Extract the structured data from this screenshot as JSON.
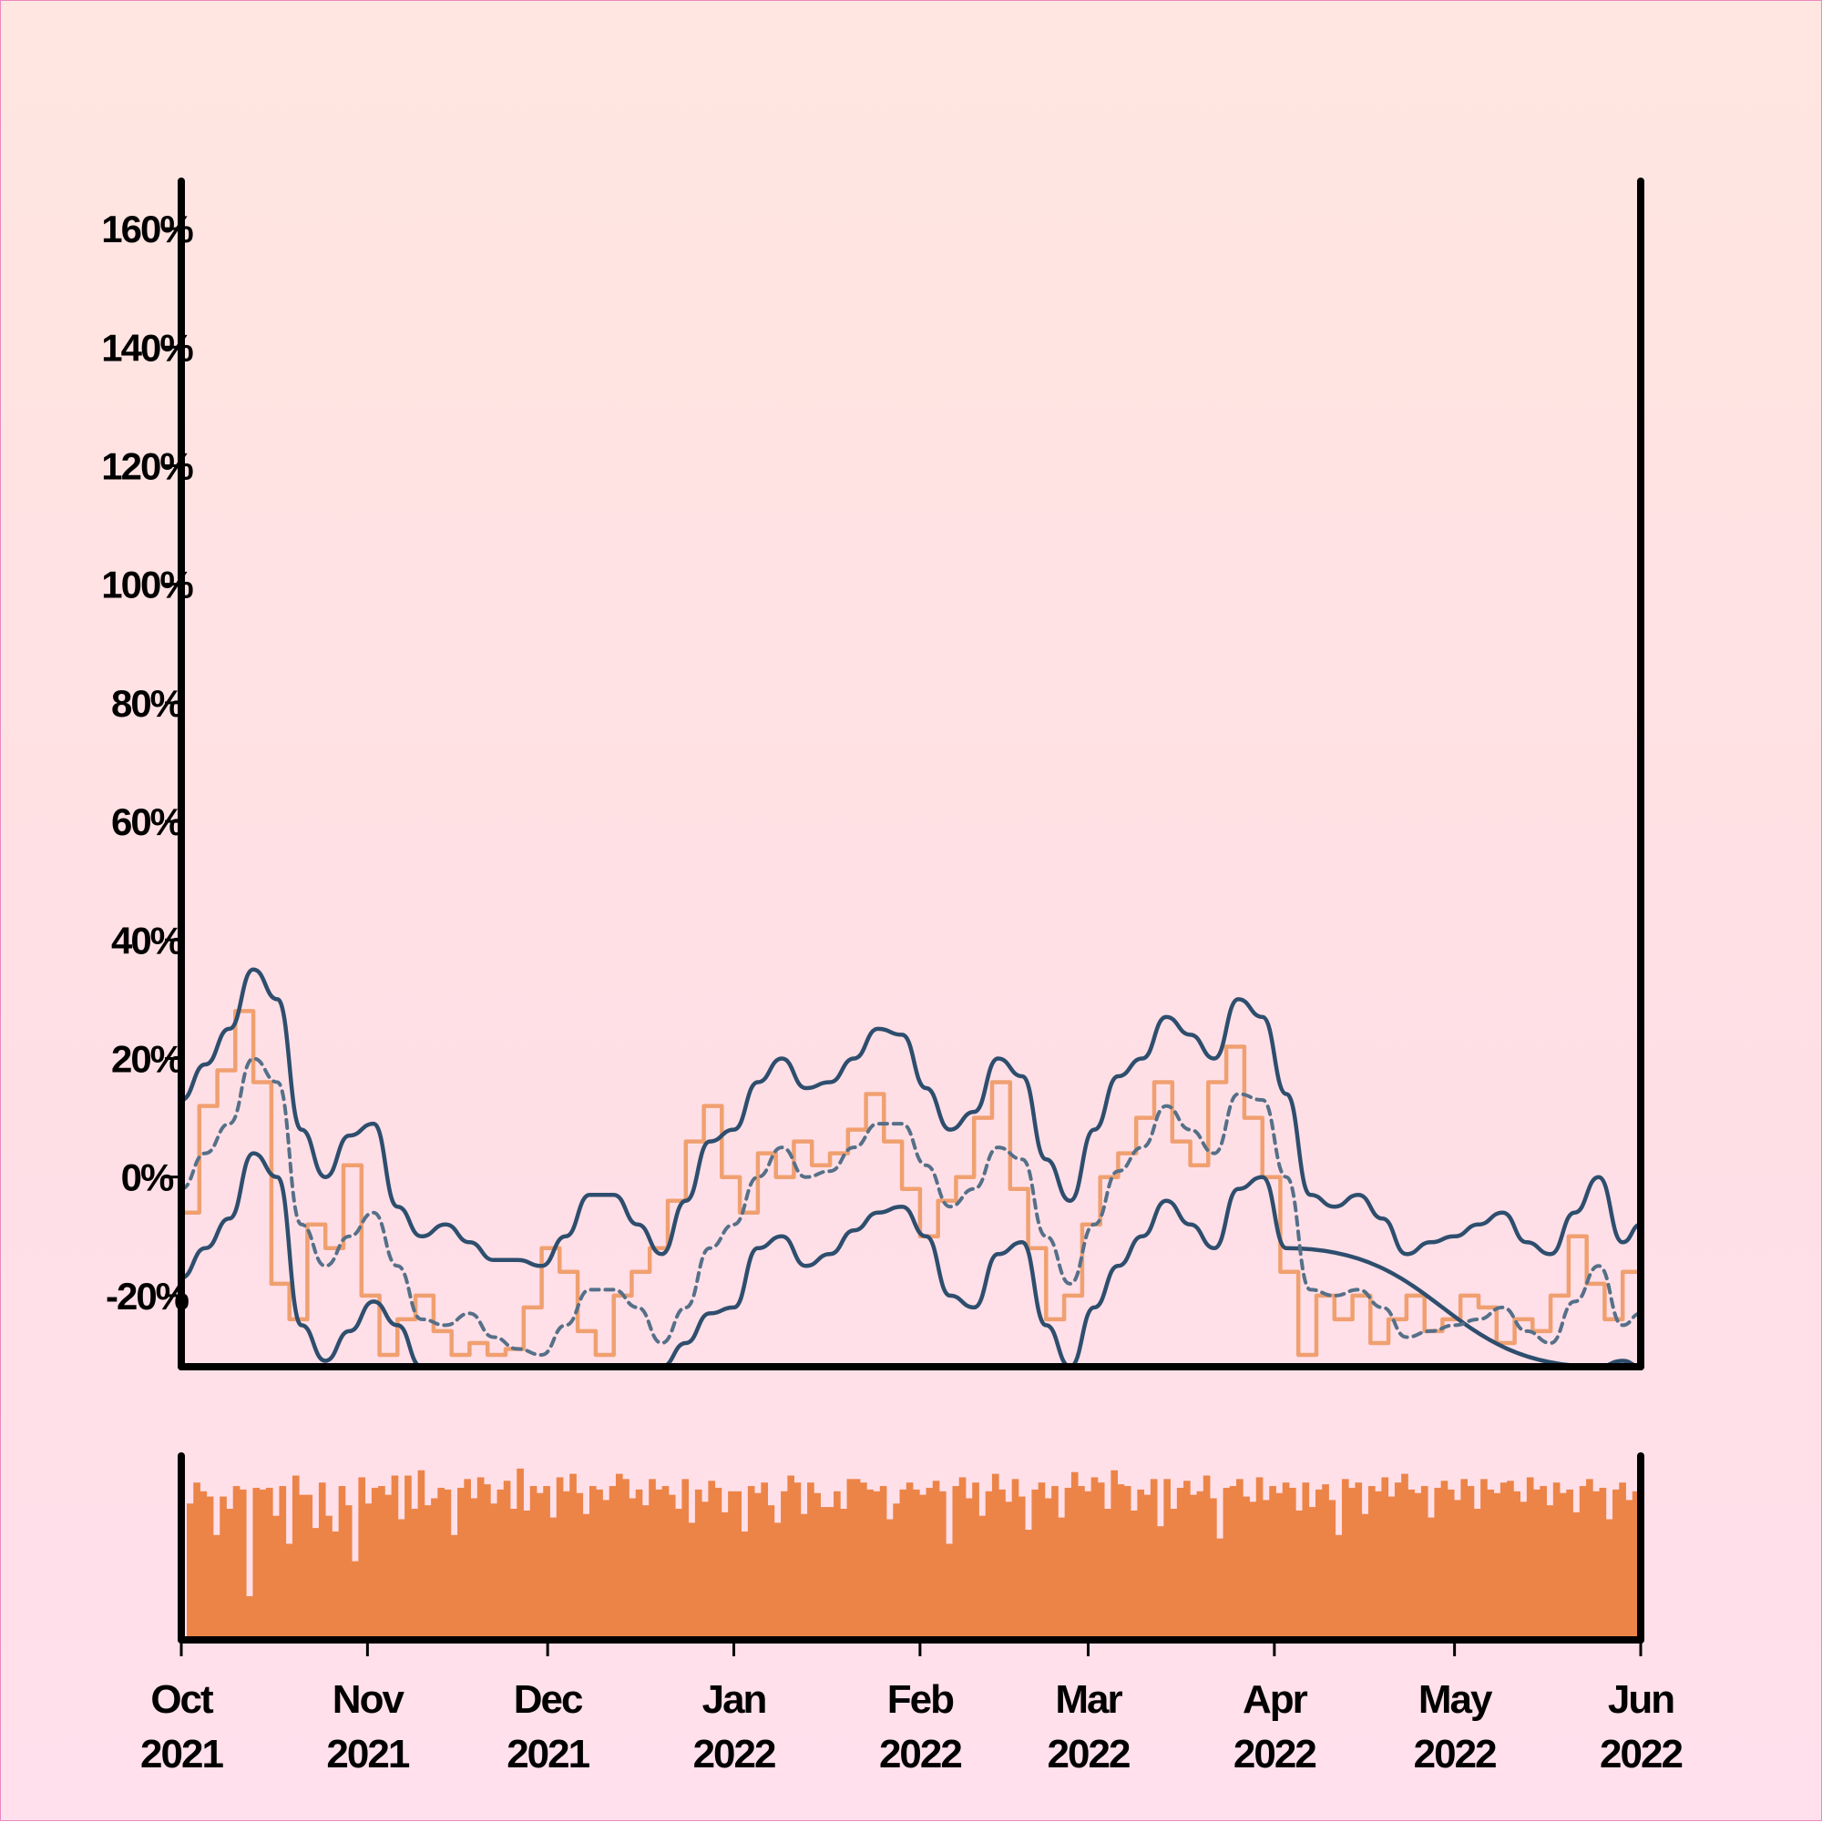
{
  "chart_data": [
    {
      "type": "line",
      "panel": "main",
      "title": "",
      "xlabel": "",
      "ylabel": "",
      "x_range": [
        "2021-10-01",
        "2022-06-01"
      ],
      "ylim": [
        -0.32,
        1.68
      ],
      "y_tick_values": [
        -0.2,
        0,
        0.2,
        0.4,
        0.6,
        0.8,
        1.0,
        1.2,
        1.4,
        1.6
      ],
      "y_tick_labels": [
        "-20%",
        "0%",
        "20%",
        "40%",
        "60%",
        "80%",
        "100%",
        "120%",
        "140%",
        "160%"
      ],
      "x_tick_values": [
        "2021-10-01",
        "2021-11-01",
        "2021-12-01",
        "2022-01-01",
        "2022-02-01",
        "2022-03-01",
        "2022-04-01",
        "2022-05-01",
        "2022-06-01"
      ],
      "x_tick_labels": [
        {
          "month": "Oct",
          "year": "2021"
        },
        {
          "month": "Nov",
          "year": "2021"
        },
        {
          "month": "Dec",
          "year": "2021"
        },
        {
          "month": "Jan",
          "year": "2022"
        },
        {
          "month": "Feb",
          "year": "2022"
        },
        {
          "month": "Mar",
          "year": "2022"
        },
        {
          "month": "Apr",
          "year": "2022"
        },
        {
          "month": "May",
          "year": "2022"
        },
        {
          "month": "Jun",
          "year": "2022"
        }
      ],
      "grid": false,
      "legend": "none",
      "colors": {
        "daily": "#f0a070",
        "band": "#2e4e6e",
        "mean": "#557088"
      },
      "series": [
        {
          "style": "orange thin line",
          "x": [
            "2021-10-01",
            "2021-10-04",
            "2021-10-07",
            "2021-10-10",
            "2021-10-13",
            "2021-10-16",
            "2021-10-19",
            "2021-10-22",
            "2021-10-25",
            "2021-10-28",
            "2021-10-31",
            "2021-11-03",
            "2021-11-06",
            "2021-11-09",
            "2021-11-12",
            "2021-11-15",
            "2021-11-18",
            "2021-11-21",
            "2021-11-24",
            "2021-11-27",
            "2021-11-30",
            "2021-12-03",
            "2021-12-06",
            "2021-12-09",
            "2021-12-12",
            "2021-12-15",
            "2021-12-18",
            "2021-12-21",
            "2021-12-24",
            "2021-12-27",
            "2021-12-30",
            "2022-01-02",
            "2022-01-05",
            "2022-01-08",
            "2022-01-11",
            "2022-01-14",
            "2022-01-17",
            "2022-01-20",
            "2022-01-23",
            "2022-01-26",
            "2022-01-29",
            "2022-02-01",
            "2022-02-04",
            "2022-02-07",
            "2022-02-10",
            "2022-02-13",
            "2022-02-16",
            "2022-02-19",
            "2022-02-22",
            "2022-02-25",
            "2022-02-28",
            "2022-03-03",
            "2022-03-06",
            "2022-03-09",
            "2022-03-12",
            "2022-03-15",
            "2022-03-18",
            "2022-03-21",
            "2022-03-24",
            "2022-03-27",
            "2022-03-30",
            "2022-04-02",
            "2022-04-05",
            "2022-04-08",
            "2022-04-11",
            "2022-04-14",
            "2022-04-17",
            "2022-04-20",
            "2022-04-23",
            "2022-04-26",
            "2022-04-29",
            "2022-05-02",
            "2022-05-05",
            "2022-05-08",
            "2022-05-11",
            "2022-05-14",
            "2022-05-17",
            "2022-05-20",
            "2022-05-23",
            "2022-05-26",
            "2022-05-29",
            "2022-06-01"
          ],
          "values": [
            -0.06,
            0.12,
            0.18,
            0.28,
            0.16,
            -0.18,
            -0.24,
            -0.08,
            -0.12,
            0.02,
            -0.2,
            -0.3,
            -0.24,
            -0.2,
            -0.26,
            -0.3,
            -0.28,
            -0.3,
            -0.29,
            -0.22,
            -0.12,
            -0.16,
            -0.26,
            -0.3,
            -0.2,
            -0.16,
            -0.12,
            -0.04,
            0.06,
            0.12,
            0.0,
            -0.06,
            0.04,
            0.0,
            0.06,
            0.02,
            0.04,
            0.08,
            0.14,
            0.06,
            -0.02,
            -0.1,
            -0.04,
            0.0,
            0.1,
            0.16,
            -0.02,
            -0.12,
            -0.24,
            -0.2,
            -0.08,
            0.0,
            0.04,
            0.1,
            0.16,
            0.06,
            0.02,
            0.16,
            0.22,
            0.1,
            0.0,
            -0.16,
            -0.3,
            -0.2,
            -0.24,
            -0.2,
            -0.28,
            -0.24,
            -0.2,
            -0.26,
            -0.24,
            -0.2,
            -0.22,
            -0.28,
            -0.24,
            -0.26,
            -0.2,
            -0.1,
            -0.18,
            -0.24,
            -0.16,
            -0.3
          ]
        },
        {
          "style": "dark solid line (upper band)",
          "x": [
            "2021-10-01",
            "2021-10-05",
            "2021-10-09",
            "2021-10-13",
            "2021-10-17",
            "2021-10-21",
            "2021-10-25",
            "2021-10-29",
            "2021-11-02",
            "2021-11-06",
            "2021-11-10",
            "2021-11-14",
            "2021-11-18",
            "2021-11-22",
            "2021-11-26",
            "2021-11-30",
            "2021-12-04",
            "2021-12-08",
            "2021-12-12",
            "2021-12-16",
            "2021-12-20",
            "2021-12-24",
            "2021-12-28",
            "2022-01-01",
            "2022-01-05",
            "2022-01-09",
            "2022-01-13",
            "2022-01-17",
            "2022-01-21",
            "2022-01-25",
            "2022-01-29",
            "2022-02-02",
            "2022-02-06",
            "2022-02-10",
            "2022-02-14",
            "2022-02-18",
            "2022-02-22",
            "2022-02-26",
            "2022-03-02",
            "2022-03-06",
            "2022-03-10",
            "2022-03-14",
            "2022-03-18",
            "2022-03-22",
            "2022-03-26",
            "2022-03-30",
            "2022-04-03",
            "2022-04-07",
            "2022-04-11",
            "2022-04-15",
            "2022-04-19",
            "2022-04-23",
            "2022-04-27",
            "2022-05-01",
            "2022-05-05",
            "2022-05-09",
            "2022-05-13",
            "2022-05-17",
            "2022-05-21",
            "2022-05-25",
            "2022-05-29",
            "2022-06-01"
          ],
          "values": [
            0.13,
            0.19,
            0.25,
            0.35,
            0.3,
            0.08,
            0.0,
            0.07,
            0.09,
            -0.05,
            -0.1,
            -0.08,
            -0.11,
            -0.14,
            -0.14,
            -0.15,
            -0.1,
            -0.03,
            -0.03,
            -0.08,
            -0.13,
            -0.04,
            0.06,
            0.08,
            0.16,
            0.2,
            0.15,
            0.16,
            0.2,
            0.25,
            0.24,
            0.15,
            0.08,
            0.11,
            0.2,
            0.17,
            0.03,
            -0.04,
            0.08,
            0.17,
            0.2,
            0.27,
            0.24,
            0.2,
            0.3,
            0.27,
            0.14,
            -0.03,
            -0.05,
            -0.03,
            -0.07,
            -0.13,
            -0.11,
            -0.1,
            -0.08,
            -0.06,
            -0.11,
            -0.13,
            -0.06,
            0.0,
            -0.11,
            -0.08
          ]
        },
        {
          "style": "dark solid line (lower band)",
          "x": [
            "2021-10-01",
            "2021-10-05",
            "2021-10-09",
            "2021-10-13",
            "2021-10-17",
            "2021-10-21",
            "2021-10-25",
            "2021-10-29",
            "2021-11-02",
            "2021-11-06",
            "2021-11-10",
            "2021-12-20",
            "2021-12-24",
            "2021-12-28",
            "2022-01-01",
            "2022-01-05",
            "2022-01-09",
            "2022-01-13",
            "2022-01-17",
            "2022-01-21",
            "2022-01-25",
            "2022-01-29",
            "2022-02-02",
            "2022-02-06",
            "2022-02-10",
            "2022-02-14",
            "2022-02-18",
            "2022-02-22",
            "2022-02-26",
            "2022-03-02",
            "2022-03-06",
            "2022-03-10",
            "2022-03-14",
            "2022-03-18",
            "2022-03-22",
            "2022-03-26",
            "2022-03-30",
            "2022-04-03",
            "2022-05-25",
            "2022-05-29",
            "2022-06-01"
          ],
          "values": [
            -0.17,
            -0.12,
            -0.07,
            0.04,
            0.0,
            -0.25,
            -0.31,
            -0.26,
            -0.21,
            -0.25,
            -0.32,
            -0.32,
            -0.28,
            -0.23,
            -0.22,
            -0.12,
            -0.1,
            -0.15,
            -0.13,
            -0.09,
            -0.06,
            -0.05,
            -0.1,
            -0.2,
            -0.22,
            -0.13,
            -0.11,
            -0.25,
            -0.32,
            -0.22,
            -0.15,
            -0.1,
            -0.04,
            -0.08,
            -0.12,
            -0.02,
            0.0,
            -0.12,
            -0.32,
            -0.31,
            -0.32
          ]
        },
        {
          "style": "dashed line (mean)",
          "x": [
            "2021-10-01",
            "2021-10-05",
            "2021-10-09",
            "2021-10-13",
            "2021-10-17",
            "2021-10-21",
            "2021-10-25",
            "2021-10-29",
            "2021-11-02",
            "2021-11-06",
            "2021-11-10",
            "2021-11-14",
            "2021-11-18",
            "2021-11-22",
            "2021-11-26",
            "2021-11-30",
            "2021-12-04",
            "2021-12-08",
            "2021-12-12",
            "2021-12-16",
            "2021-12-20",
            "2021-12-24",
            "2021-12-28",
            "2022-01-01",
            "2022-01-05",
            "2022-01-09",
            "2022-01-13",
            "2022-01-17",
            "2022-01-21",
            "2022-01-25",
            "2022-01-29",
            "2022-02-02",
            "2022-02-06",
            "2022-02-10",
            "2022-02-14",
            "2022-02-18",
            "2022-02-22",
            "2022-02-26",
            "2022-03-02",
            "2022-03-06",
            "2022-03-10",
            "2022-03-14",
            "2022-03-18",
            "2022-03-22",
            "2022-03-26",
            "2022-03-30",
            "2022-04-03",
            "2022-04-07",
            "2022-04-11",
            "2022-04-15",
            "2022-04-19",
            "2022-04-23",
            "2022-04-27",
            "2022-05-01",
            "2022-05-05",
            "2022-05-09",
            "2022-05-13",
            "2022-05-17",
            "2022-05-21",
            "2022-05-25",
            "2022-05-29",
            "2022-06-01"
          ],
          "values": [
            -0.02,
            0.04,
            0.09,
            0.2,
            0.16,
            -0.08,
            -0.15,
            -0.1,
            -0.06,
            -0.15,
            -0.24,
            -0.25,
            -0.23,
            -0.27,
            -0.29,
            -0.3,
            -0.25,
            -0.19,
            -0.19,
            -0.22,
            -0.28,
            -0.22,
            -0.12,
            -0.08,
            0.0,
            0.05,
            0.0,
            0.01,
            0.05,
            0.09,
            0.09,
            0.02,
            -0.05,
            -0.02,
            0.05,
            0.03,
            -0.1,
            -0.18,
            -0.08,
            0.01,
            0.05,
            0.12,
            0.08,
            0.04,
            0.14,
            0.13,
            0.0,
            -0.19,
            -0.2,
            -0.19,
            -0.22,
            -0.27,
            -0.26,
            -0.25,
            -0.24,
            -0.22,
            -0.26,
            -0.28,
            -0.21,
            -0.15,
            -0.25,
            -0.23
          ]
        }
      ]
    },
    {
      "type": "bar",
      "panel": "volume",
      "title": "",
      "xlabel": "",
      "ylabel": "",
      "x_range": [
        "2021-10-01",
        "2022-06-01"
      ],
      "ylim": [
        0,
        1
      ],
      "color": "#ec8448",
      "values_note_none": "",
      "values": [
        0.78,
        0.9,
        0.85,
        0.82,
        0.6,
        0.82,
        0.75,
        0.88,
        0.86,
        0.25,
        0.87,
        0.86,
        0.87,
        0.71,
        0.88,
        0.55,
        0.94,
        0.83,
        0.83,
        0.64,
        0.9,
        0.71,
        0.62,
        0.88,
        0.77,
        0.45,
        0.93,
        0.78,
        0.87,
        0.88,
        0.83,
        0.94,
        0.69,
        0.94,
        0.75,
        0.97,
        0.77,
        0.81,
        0.87,
        0.86,
        0.6,
        0.87,
        0.92,
        0.81,
        0.93,
        0.89,
        0.78,
        0.86,
        0.91,
        0.75,
        0.98,
        0.74,
        0.88,
        0.84,
        0.88,
        0.7,
        0.93,
        0.85,
        0.95,
        0.84,
        0.72,
        0.88,
        0.86,
        0.8,
        0.88,
        0.95,
        0.92,
        0.81,
        0.86,
        0.77,
        0.92,
        0.86,
        0.88,
        0.83,
        0.75,
        0.92,
        0.67,
        0.86,
        0.79,
        0.91,
        0.87,
        0.73,
        0.85,
        0.85,
        0.62,
        0.88,
        0.84,
        0.9,
        0.77,
        0.67,
        0.85,
        0.94,
        0.9,
        0.72,
        0.9,
        0.84,
        0.76,
        0.76,
        0.85,
        0.75,
        0.92,
        0.92,
        0.9,
        0.86,
        0.85,
        0.88,
        0.69,
        0.78,
        0.86,
        0.9,
        0.86,
        0.83,
        0.87,
        0.91,
        0.85,
        0.55,
        0.88,
        0.93,
        0.81,
        0.9,
        0.71,
        0.85,
        0.95,
        0.86,
        0.79,
        0.92,
        0.82,
        0.63,
        0.86,
        0.9,
        0.81,
        0.88,
        0.7,
        0.87,
        0.96,
        0.88,
        0.85,
        0.93,
        0.9,
        0.75,
        0.97,
        0.89,
        0.88,
        0.74,
        0.86,
        0.83,
        0.92,
        0.65,
        0.92,
        0.75,
        0.87,
        0.91,
        0.83,
        0.85,
        0.94,
        0.81,
        0.58,
        0.87,
        0.88,
        0.92,
        0.82,
        0.79,
        0.93,
        0.8,
        0.88,
        0.84,
        0.9,
        0.87,
        0.74,
        0.9,
        0.76,
        0.86,
        0.89,
        0.8,
        0.6,
        0.92,
        0.87,
        0.9,
        0.72,
        0.88,
        0.85,
        0.93,
        0.82,
        0.9,
        0.95,
        0.86,
        0.84,
        0.88,
        0.7,
        0.87,
        0.91,
        0.86,
        0.8,
        0.92,
        0.88,
        0.75,
        0.92,
        0.86,
        0.84,
        0.9,
        0.91,
        0.85,
        0.79,
        0.93,
        0.86,
        0.88,
        0.77,
        0.9,
        0.84,
        0.86,
        0.73,
        0.88,
        0.92,
        0.85,
        0.87,
        0.69,
        0.86,
        0.9,
        0.8,
        0.85
      ]
    }
  ]
}
